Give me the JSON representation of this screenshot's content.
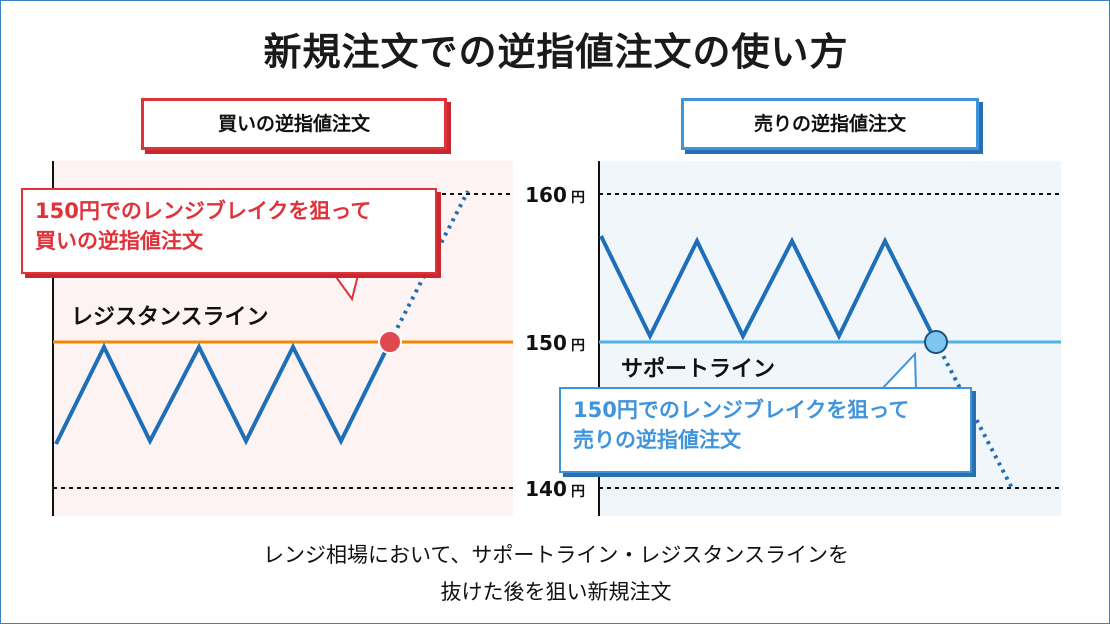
{
  "title": "新規注文での逆指値注文の使い方",
  "buy_panel": {
    "label": "買いの逆指値注文",
    "line_label": "レジスタンスライン",
    "callout_line1": "150円でのレンジブレイクを狙って",
    "callout_line2": "買いの逆指値注文"
  },
  "sell_panel": {
    "label": "売りの逆指値注文",
    "line_label": "サポートライン",
    "callout_line1": "150円でのレンジブレイクを狙って",
    "callout_line2": "売りの逆指値注文"
  },
  "price_axis": {
    "ticks": [
      {
        "value": 160,
        "label": "160",
        "unit": "円"
      },
      {
        "value": 150,
        "label": "150",
        "unit": "円"
      },
      {
        "value": 140,
        "label": "140",
        "unit": "円"
      }
    ]
  },
  "caption": {
    "line1": "レンジ相場において、サポートライン・レジスタンスラインを",
    "line2": "抜けた後を狙い新規注文"
  },
  "colors": {
    "buy": "#e0323a",
    "sell": "#3f94dc",
    "price_line": "#1f6fb8",
    "resistance_line": "#f08a00",
    "support_line": "#4fb3e6",
    "buy_bg": "#fdf3f3",
    "sell_bg": "#f1f6fb"
  }
}
